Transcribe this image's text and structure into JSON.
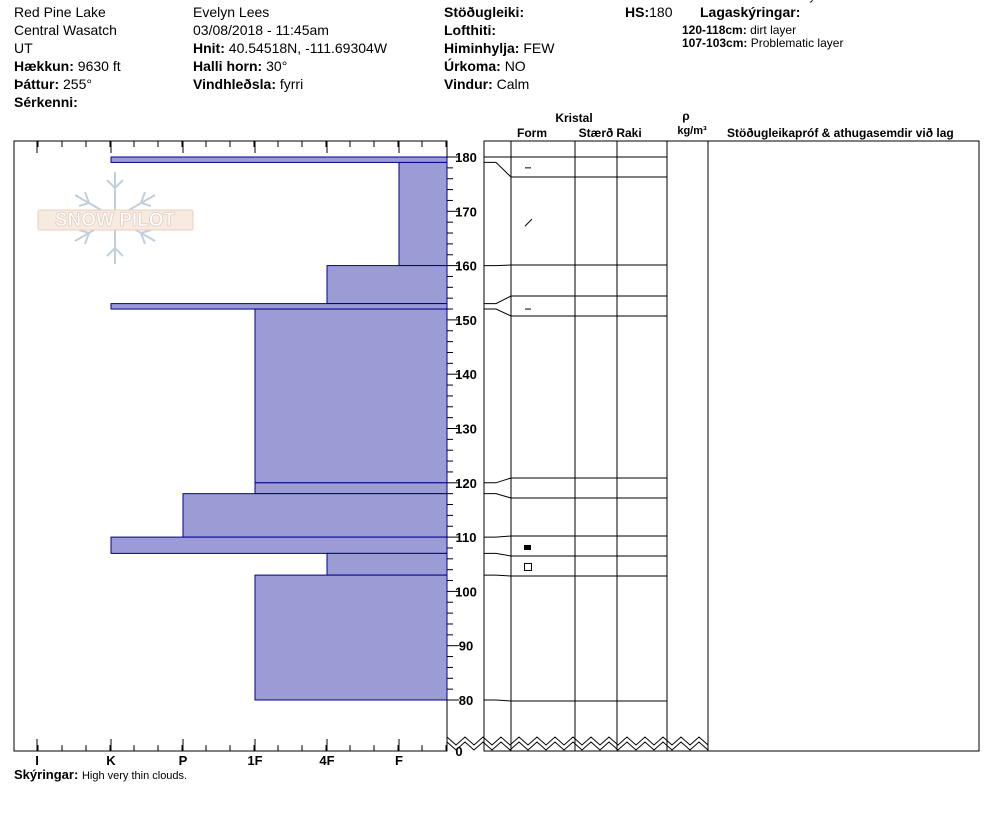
{
  "header": {
    "col1": {
      "location": "Red Pine Lake",
      "range": "Central Wasatch",
      "state": "UT",
      "elev_label": "Hækkun:",
      "elev_value": "9630 ft",
      "aspect_label": "Þáttur:",
      "aspect_value": "255°",
      "special_label": "Sérkenni:"
    },
    "col2": {
      "observer": "Evelyn Lees",
      "datetime": "03/08/2018 - 11:45am",
      "coords_label": "Hnit:",
      "coords_value": "40.54518N, -111.69304W",
      "slope_label": "Halli horn:",
      "slope_value": "30°",
      "wind_label": "Vindhleðsla:",
      "wind_value": "fyrri"
    },
    "col3": {
      "stability_label": "Stöðugleiki:",
      "airtemp_label": "Lofthiti:",
      "sky_label": "Himinhylja:",
      "sky_value": "FEW",
      "precip_label": "Úrkoma:",
      "precip_value": "NO",
      "windv_label": "Vindur:",
      "windv_value": "Calm"
    },
    "hs_label": "HS:",
    "hs_value": "180",
    "legend_title": "Lagaskýringar:",
    "legend": [
      {
        "range": "120-118cm:",
        "desc": "dirt layer"
      },
      {
        "range": "107-103cm:",
        "desc": "Problematic layer"
      }
    ]
  },
  "table_headers": {
    "crystal": "Kristal",
    "form": "Form",
    "size": "Stærð",
    "moisture": "Raki",
    "rho": "ρ",
    "density_unit": "kg/m³",
    "comments": "Stöðugleikapróf & athugasemdir við lag"
  },
  "comment_entries": [
    {
      "range": "120-118cm:",
      "desc": "dirt layer",
      "at_cm": 119
    }
  ],
  "notes_label": "Skýringar:",
  "notes_value": "High very thin clouds.",
  "watermark": "SNOW PILOT",
  "colors": {
    "bar_fill": "#9b9bd6",
    "bar_stroke": "#00008b"
  },
  "chart_data": {
    "type": "bar",
    "orientation": "horizontal",
    "y_axis": {
      "unit": "cm",
      "ticks": [
        0,
        80,
        90,
        100,
        110,
        120,
        130,
        140,
        150,
        160,
        170,
        180
      ],
      "visible_range": [
        80,
        180
      ],
      "break_below": 80
    },
    "hardness_scale": [
      "I",
      "K",
      "P",
      "1F",
      "4F",
      "F"
    ],
    "hardness_values": {
      "F": 1,
      "4F": 2,
      "1F": 3,
      "P": 4,
      "K": 5,
      "I": 6
    },
    "layers": [
      {
        "top": 180,
        "bottom": 179,
        "hardness": "K"
      },
      {
        "top": 179,
        "bottom": 160,
        "hardness": "F"
      },
      {
        "top": 160,
        "bottom": 153,
        "hardness": "4F"
      },
      {
        "top": 153,
        "bottom": 152,
        "hardness": "K"
      },
      {
        "top": 152,
        "bottom": 120,
        "hardness": "1F"
      },
      {
        "top": 120,
        "bottom": 118,
        "hardness": "1F"
      },
      {
        "top": 118,
        "bottom": 110,
        "hardness": "P"
      },
      {
        "top": 110,
        "bottom": 107,
        "hardness": "K"
      },
      {
        "top": 107,
        "bottom": 103,
        "hardness": "4F"
      },
      {
        "top": 103,
        "bottom": 80,
        "hardness": "1F"
      }
    ],
    "grain_symbols": [
      {
        "at": 178,
        "symbol": "dash"
      },
      {
        "at": 168,
        "symbol": "slash"
      },
      {
        "at": 152,
        "symbol": "dash"
      },
      {
        "at": 108,
        "symbol": "filled-square"
      },
      {
        "at": 104.5,
        "symbol": "open-square"
      }
    ]
  }
}
